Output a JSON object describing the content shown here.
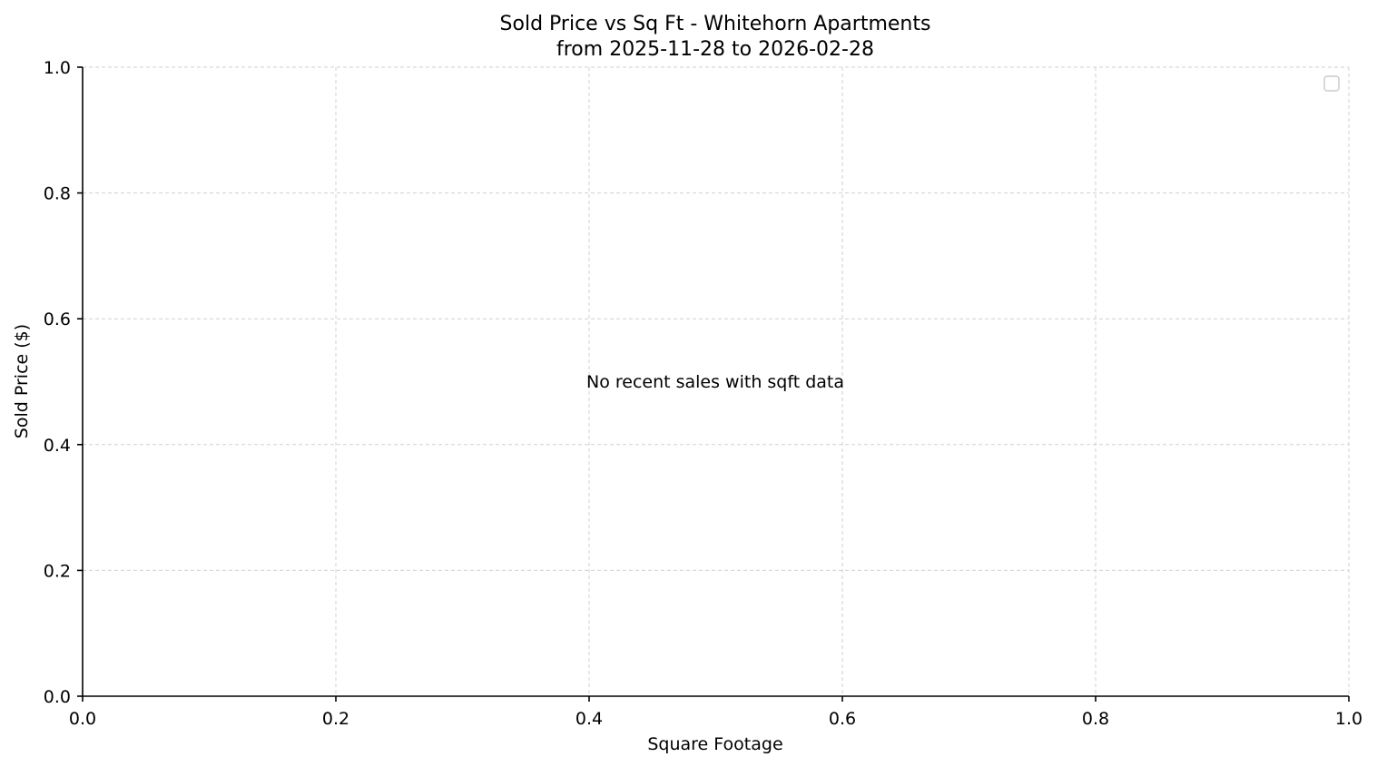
{
  "chart_data": {
    "type": "scatter",
    "title": [
      "Sold Price vs Sq Ft - Whitehorn Apartments",
      "from 2025-11-28 to 2026-02-28"
    ],
    "xlabel": "Square Footage",
    "ylabel": "Sold Price ($)",
    "xlim": [
      0,
      1
    ],
    "ylim": [
      0,
      1
    ],
    "x_ticks": [
      "0.0",
      "0.2",
      "0.4",
      "0.6",
      "0.8",
      "1.0"
    ],
    "y_ticks": [
      "0.0",
      "0.2",
      "0.4",
      "0.6",
      "0.8",
      "1.0"
    ],
    "grid": true,
    "legend": {
      "placement": "top-right",
      "entries": []
    },
    "series": [],
    "annotation": "No recent sales with sqft data"
  }
}
